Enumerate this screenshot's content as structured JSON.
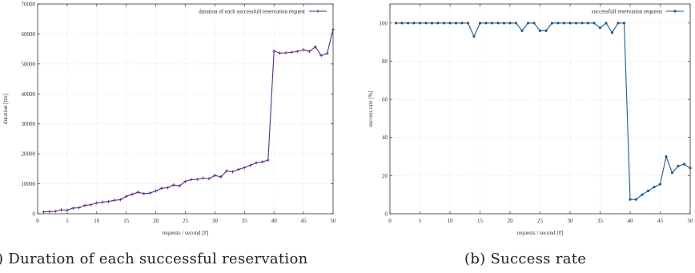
{
  "captions": {
    "a": "a) Duration of each successful reservation",
    "b": "(b) Success rate"
  },
  "chart_data": [
    {
      "type": "line",
      "title": "",
      "xlabel": "requests / second [#]",
      "ylabel": "duration [ms]",
      "xlim": [
        0,
        50
      ],
      "ylim": [
        0,
        70000
      ],
      "xticks": [
        0,
        5,
        10,
        15,
        20,
        25,
        30,
        35,
        40,
        45,
        50
      ],
      "yticks": [
        0,
        10000,
        20000,
        30000,
        40000,
        50000,
        60000,
        70000
      ],
      "grid": true,
      "legend_position": "top-right",
      "color": "#5b2a86",
      "series": [
        {
          "name": "duration of each successfull reservation request",
          "x": [
            1,
            2,
            3,
            4,
            5,
            6,
            7,
            8,
            9,
            10,
            11,
            12,
            13,
            14,
            15,
            16,
            17,
            18,
            19,
            20,
            21,
            22,
            23,
            24,
            25,
            26,
            27,
            28,
            29,
            30,
            31,
            32,
            33,
            34,
            35,
            36,
            37,
            38,
            39,
            40,
            41,
            42,
            43,
            44,
            45,
            46,
            47,
            48,
            49,
            50
          ],
          "y": [
            600,
            700,
            800,
            1300,
            1200,
            1900,
            2000,
            2800,
            3000,
            3600,
            3900,
            4100,
            4500,
            4700,
            5800,
            6500,
            7200,
            6700,
            6900,
            7600,
            8500,
            8700,
            9600,
            9300,
            10800,
            11400,
            11500,
            11900,
            11700,
            12800,
            12300,
            14300,
            14000,
            14800,
            15400,
            16200,
            17000,
            17300,
            17900,
            54300,
            53600,
            53700,
            53900,
            54200,
            54700,
            54200,
            55700,
            52800,
            53500,
            61600
          ]
        }
      ]
    },
    {
      "type": "line",
      "title": "",
      "xlabel": "requests / second [#]",
      "ylabel": "success rate [%]",
      "xlim": [
        0,
        50
      ],
      "ylim": [
        0,
        110
      ],
      "xticks": [
        0,
        5,
        10,
        15,
        20,
        25,
        30,
        35,
        40,
        45,
        50
      ],
      "yticks": [
        0,
        20,
        40,
        60,
        80,
        100
      ],
      "grid": true,
      "legend_position": "top-right",
      "color": "#1f5a8c",
      "series": [
        {
          "name": "successfull reservation requests",
          "x": [
            1,
            2,
            3,
            4,
            5,
            6,
            7,
            8,
            9,
            10,
            11,
            12,
            13,
            14,
            15,
            16,
            17,
            18,
            19,
            20,
            21,
            22,
            23,
            24,
            25,
            26,
            27,
            28,
            29,
            30,
            31,
            32,
            33,
            34,
            35,
            36,
            37,
            38,
            39,
            40,
            41,
            42,
            43,
            44,
            45,
            46,
            47,
            48,
            49,
            50
          ],
          "y": [
            100,
            100,
            100,
            100,
            100,
            100,
            100,
            100,
            100,
            100,
            100,
            100,
            100,
            93,
            100,
            100,
            100,
            100,
            100,
            100,
            100,
            96,
            100,
            100,
            96,
            96,
            100,
            100,
            100,
            100,
            100,
            100,
            100,
            100,
            97.5,
            100,
            95,
            100,
            100,
            7.5,
            7.5,
            10,
            12,
            14,
            15.5,
            30,
            21.5,
            25,
            26,
            24
          ]
        }
      ]
    }
  ]
}
